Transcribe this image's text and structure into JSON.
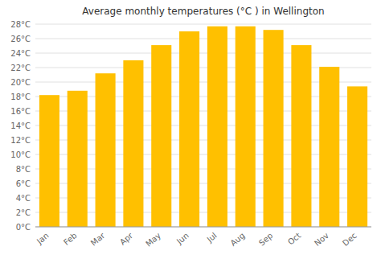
{
  "chart_data": {
    "type": "bar",
    "title": "Average monthly temperatures (°C ) in Wellington",
    "categories": [
      "Jan",
      "Feb",
      "Mar",
      "Apr",
      "May",
      "Jun",
      "Jul",
      "Aug",
      "Sep",
      "Oct",
      "Nov",
      "Dec"
    ],
    "values": [
      18.2,
      18.8,
      21.2,
      23.0,
      25.1,
      27.0,
      27.7,
      27.7,
      27.2,
      25.1,
      22.1,
      19.4
    ],
    "color": "#FFC000",
    "ylim": [
      0,
      28
    ],
    "yticks": [
      {
        "value": 0,
        "label": "0°C"
      },
      {
        "value": 2,
        "label": "2°C"
      },
      {
        "value": 4,
        "label": "4°C"
      },
      {
        "value": 6,
        "label": "6°C"
      },
      {
        "value": 8,
        "label": "8°C"
      },
      {
        "value": 10,
        "label": "10°C"
      },
      {
        "value": 12,
        "label": "12°C"
      },
      {
        "value": 14,
        "label": "14°C"
      },
      {
        "value": 16,
        "label": "16°C"
      },
      {
        "value": 18,
        "label": "18°C"
      },
      {
        "value": 20,
        "label": "20°C"
      },
      {
        "value": 22,
        "label": "22°C"
      },
      {
        "value": 24,
        "label": "24°C"
      },
      {
        "value": 26,
        "label": "26°C"
      },
      {
        "value": 28,
        "label": "28°C"
      }
    ],
    "grid": true
  }
}
